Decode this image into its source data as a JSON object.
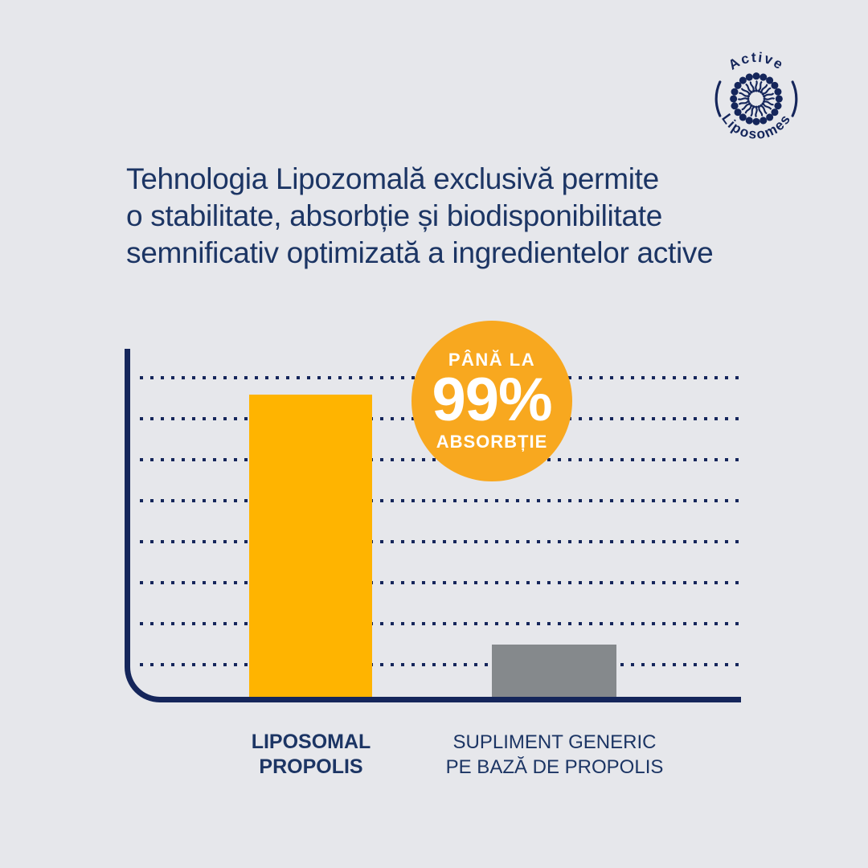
{
  "colors": {
    "bg": "#E6E7EB",
    "navy": "#15265B",
    "text_navy": "#1C3564",
    "bar_yellow": "#FFB400",
    "badge_yellow": "#F8A81F",
    "bar_gray": "#85898C",
    "white": "#FFFFFF"
  },
  "logo": {
    "top_text": "Active",
    "bottom_text": "Liposomes"
  },
  "headline": {
    "line1": "Tehnologia Lipozomală exclusivă permite",
    "line2": "o stabilitate, absorbție și biodisponibilitate",
    "line3": "semnificativ optimizată a ingredientelor active"
  },
  "badge": {
    "prefix": "PÂNĂ LA",
    "value": "99%",
    "suffix": "ABSORBȚIE"
  },
  "chart_data": {
    "type": "bar",
    "categories": [
      "LIPOSOMAL PROPOLIS",
      "SUPLIMENT GENERIC PE BAZĂ DE PROPOLIS"
    ],
    "values": [
      99,
      17
    ],
    "unit": "%",
    "title": "",
    "xlabel": "",
    "ylabel": "",
    "ylim": [
      0,
      110
    ],
    "gridlines": 8,
    "grid_style": "dotted",
    "legend": "none",
    "bar_colors": [
      "#FFB400",
      "#85898C"
    ],
    "annotation": "PÂNĂ LA 99% ABSORBȚIE"
  },
  "x_labels": {
    "bar1_line1": "LIPOSOMAL",
    "bar1_line2": "PROPOLIS",
    "bar2_line1": "SUPLIMENT GENERIC",
    "bar2_line2": "PE BAZĂ DE PROPOLIS"
  }
}
